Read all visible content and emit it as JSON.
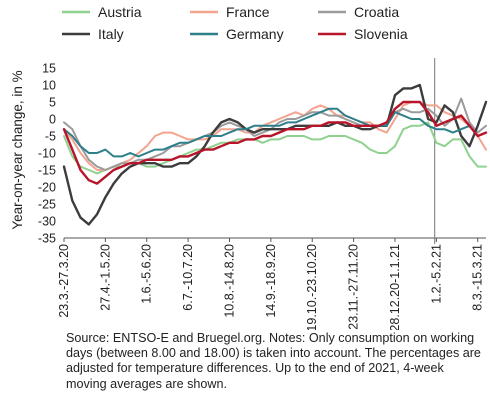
{
  "chart_data": {
    "type": "line",
    "ylabel": "Year-on-year change, in %",
    "ylim": [
      -35,
      15
    ],
    "yticks": [
      15,
      10,
      5,
      0,
      -5,
      -10,
      -15,
      -20,
      -25,
      -30,
      -35
    ],
    "x_tick_labels": [
      "23.3.-27.3.20",
      "27.4.-1.5.20",
      "1.6.-5.6.20",
      "6.7.-10.7.20",
      "10.8.-14.8.20",
      "14.9.-18.9.20",
      "19.10.-23.10.20",
      "23.11.-27.11.20",
      "28.12.20-1.1.21",
      "1.2.-5.2.21",
      "8.3.-15.3.21"
    ],
    "x_tick_positions": [
      0,
      5,
      10,
      15,
      20,
      25,
      30,
      35,
      40,
      45,
      50
    ],
    "x_range": [
      0,
      51
    ],
    "vertical_divider_at": 44.8,
    "legend_position": "top",
    "series": [
      {
        "name": "Austria",
        "color": "#8fd18f",
        "values": [
          -5,
          -11,
          -14,
          -15,
          -16,
          -15,
          -14,
          -14,
          -13,
          -13,
          -14,
          -14,
          -13,
          -12,
          -11,
          -10,
          -9,
          -9,
          -8,
          -7,
          -7,
          -6,
          -6,
          -6,
          -7,
          -6,
          -6,
          -5,
          -5,
          -5,
          -6,
          -6,
          -5,
          -5,
          -5,
          -6,
          -7,
          -9,
          -10,
          -10,
          -8,
          -3,
          -2,
          -2,
          -1,
          -7,
          -8,
          -6,
          -6,
          -11,
          -14,
          -14
        ]
      },
      {
        "name": "France",
        "color": "#f2a48f",
        "values": [
          -3,
          -6,
          -10,
          -13,
          -15,
          -15,
          -14,
          -13,
          -12,
          -10,
          -8,
          -5,
          -4,
          -4,
          -5,
          -6,
          -6,
          -6,
          -5,
          -3,
          -3,
          -3,
          -4,
          -4,
          -2,
          -1,
          0,
          1,
          2,
          1,
          3,
          4,
          3,
          1,
          1,
          0,
          -1,
          -1,
          -3,
          -4,
          0,
          4,
          5,
          5,
          4,
          4,
          2,
          1,
          0,
          -2,
          -5,
          -9
        ]
      },
      {
        "name": "Croatia",
        "color": "#9b9b9b",
        "values": [
          -1,
          -3,
          -8,
          -12,
          -14,
          -15,
          -14,
          -13,
          -13,
          -12,
          -12,
          -11,
          -10,
          -8,
          -8,
          -7,
          -6,
          -5,
          -4,
          -2,
          -1,
          -2,
          -3,
          -5,
          -4,
          -3,
          -1,
          0,
          0,
          1,
          2,
          2,
          1,
          1,
          0,
          -1,
          -2,
          -2,
          -2,
          -1,
          2,
          3,
          2,
          2,
          3,
          1,
          -2,
          0,
          6,
          -1,
          -4,
          -2
        ]
      },
      {
        "name": "Italy",
        "color": "#3c3c3c",
        "values": [
          -14,
          -24,
          -29,
          -31,
          -28,
          -23,
          -19,
          -16,
          -14,
          -13,
          -13,
          -13,
          -14,
          -14,
          -13,
          -13,
          -11,
          -8,
          -4,
          -1,
          0,
          -1,
          -3,
          -4,
          -3,
          -3,
          -3,
          -3,
          -2,
          -2,
          -2,
          -2,
          -2,
          -1,
          -2,
          -2,
          -3,
          -3,
          -2,
          -2,
          7,
          9,
          9,
          10,
          0,
          -1,
          4,
          2,
          -5,
          -8,
          -2,
          5
        ]
      },
      {
        "name": "Germany",
        "color": "#2d7f8a",
        "values": [
          -3,
          -5,
          -8,
          -10,
          -10,
          -9,
          -11,
          -11,
          -10,
          -11,
          -10,
          -9,
          -9,
          -8,
          -7,
          -7,
          -6,
          -5,
          -5,
          -5,
          -4,
          -3,
          -3,
          -2,
          -2,
          -2,
          -2,
          -1,
          -1,
          0,
          1,
          2,
          3,
          3,
          1,
          0,
          -1,
          -2,
          -2,
          -2,
          2,
          1,
          0,
          0,
          -2,
          -3,
          -3,
          -4,
          -3,
          -2,
          -5,
          -4
        ]
      },
      {
        "name": "Slovenia",
        "color": "#b8142a",
        "values": [
          -3,
          -9,
          -15,
          -18,
          -19,
          -17,
          -15,
          -14,
          -13,
          -13,
          -12,
          -12,
          -12,
          -12,
          -11,
          -11,
          -10,
          -9,
          -9,
          -8,
          -7,
          -7,
          -6,
          -6,
          -5,
          -5,
          -4,
          -3,
          -3,
          -3,
          -2,
          -2,
          -1,
          -1,
          -1,
          -2,
          -2,
          -2,
          -2,
          -1,
          3,
          5,
          5,
          5,
          2,
          -2,
          -1,
          0,
          1,
          -2,
          -5,
          -4
        ]
      }
    ]
  },
  "note": "Source: ENTSO-E and Bruegel.org. Notes: Only consumption on working days (between 8.00 and 18.00) is taken into account. The percentages are adjusted for temperature differences. Up to the end of 2021, 4-week moving averages are shown."
}
